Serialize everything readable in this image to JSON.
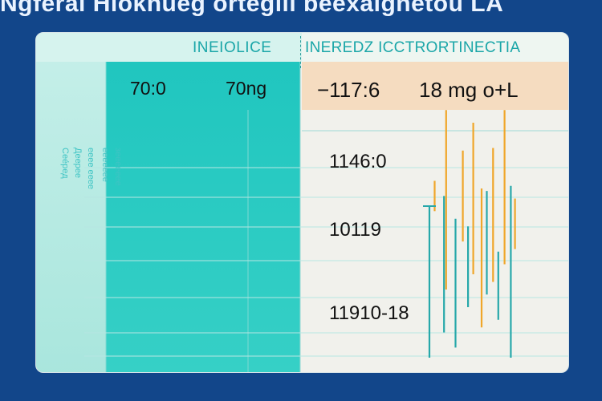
{
  "title": "Ngferai Hioknueg orteglii beexalgnetou LA",
  "header": {
    "left_label": "INEIOLICE",
    "right_label": "INEREDZ ICCTRORTINECTIA"
  },
  "top_row": {
    "left_values": [
      "70:0",
      "70ng"
    ],
    "right_values": [
      "−117:6",
      "18 mg o+L"
    ]
  },
  "rows": [
    "1146:0",
    "10119",
    "11910-18"
  ],
  "side_labels": [
    "Сее́ред",
    "Деерее",
    "ееее ееее",
    "еееееее",
    "зеееееее"
  ],
  "colors": {
    "background": "#12468a",
    "teal": "#20c6bf",
    "band": "#f5dcc0",
    "series_orange": "#f0a62a",
    "series_teal": "#27a8aa"
  },
  "chart_data": {
    "type": "bar",
    "title": "Ngferai Hioknueg orteglii beexalgnetou LA",
    "series": [
      {
        "color": "orange",
        "bars": [
          {
            "x": 0.05,
            "y0": 0.58,
            "y1": 0.7
          },
          {
            "x": 0.16,
            "y0": 0.27,
            "y1": 0.98
          },
          {
            "x": 0.32,
            "y0": 0.46,
            "y1": 0.82
          },
          {
            "x": 0.42,
            "y0": 0.33,
            "y1": 0.93
          },
          {
            "x": 0.5,
            "y0": 0.12,
            "y1": 0.67
          },
          {
            "x": 0.61,
            "y0": 0.3,
            "y1": 0.83
          },
          {
            "x": 0.72,
            "y0": 0.37,
            "y1": 0.98
          },
          {
            "x": 0.82,
            "y0": 0.43,
            "y1": 0.63
          }
        ]
      },
      {
        "color": "teal",
        "bars": [
          {
            "x": 0.0,
            "y0": 0.0,
            "y1": 0.6
          },
          {
            "x": 0.14,
            "y0": 0.1,
            "y1": 0.64
          },
          {
            "x": 0.25,
            "y0": 0.04,
            "y1": 0.55
          },
          {
            "x": 0.37,
            "y0": 0.2,
            "y1": 0.52
          },
          {
            "x": 0.55,
            "y0": 0.25,
            "y1": 0.66
          },
          {
            "x": 0.66,
            "y0": 0.15,
            "y1": 0.42
          },
          {
            "x": 0.78,
            "y0": 0.0,
            "y1": 0.68
          }
        ]
      }
    ]
  }
}
